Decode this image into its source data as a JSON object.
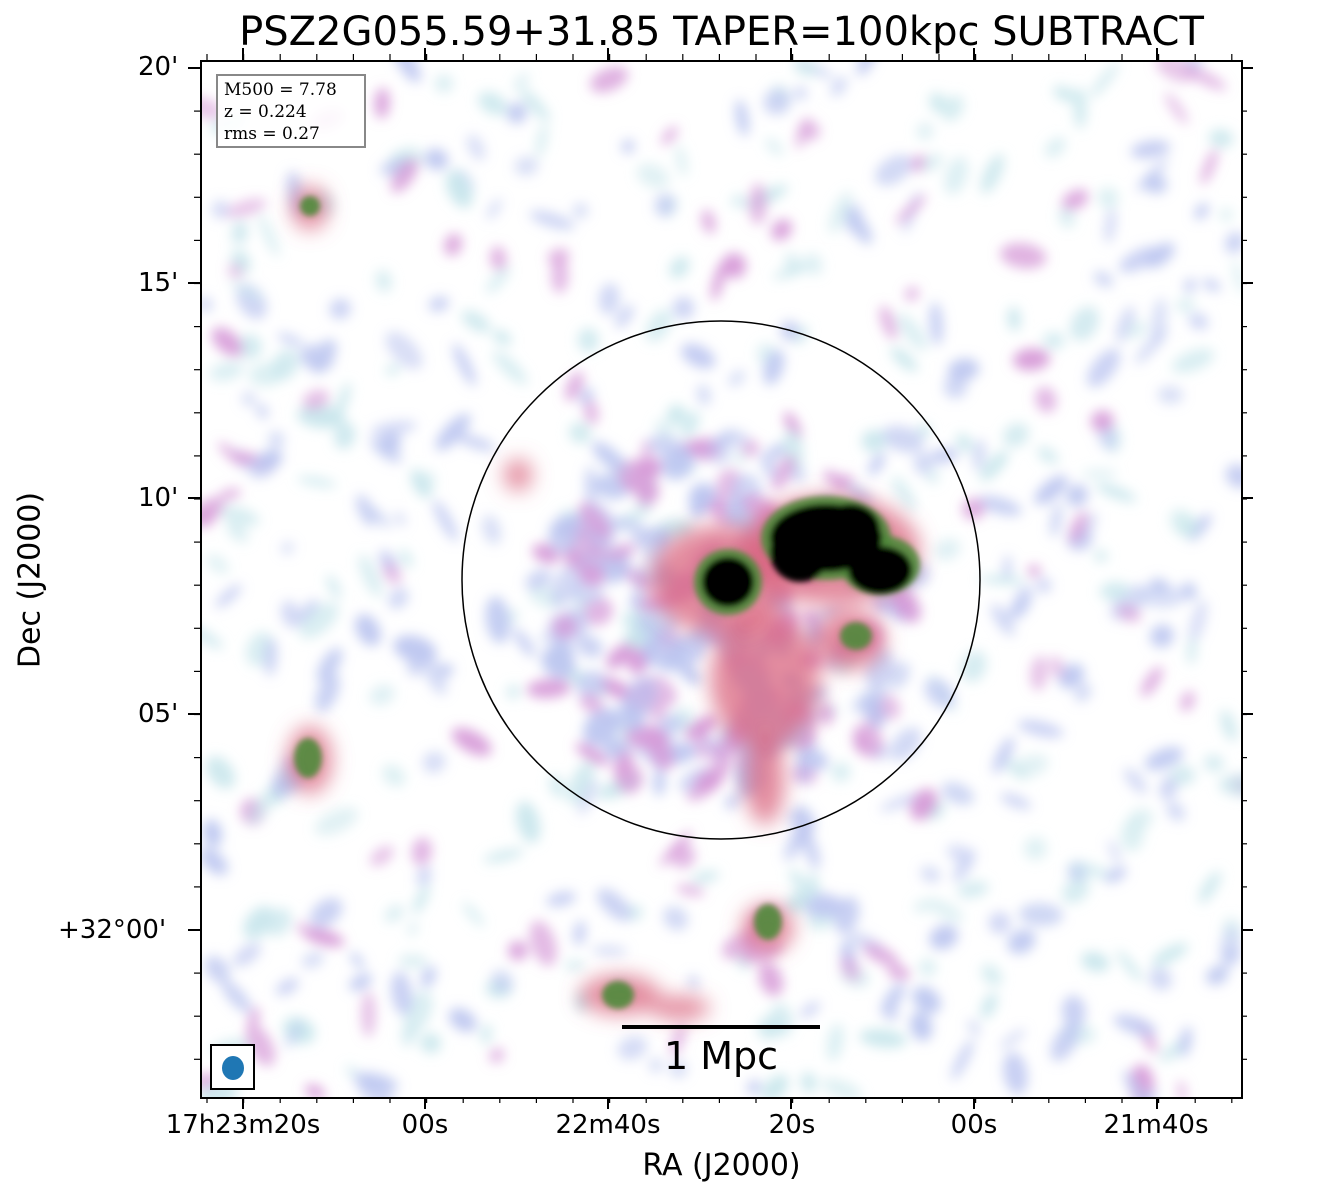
{
  "figure": {
    "title": "PSZ2G055.59+31.85 TAPER=100kpc SUBTRACT",
    "xlabel": "RA (J2000)",
    "ylabel": "Dec (J2000)",
    "x_ticks": [
      "17h23m20s",
      "00s",
      "22m40s",
      "20s",
      "00s",
      "21m40s"
    ],
    "y_ticks": [
      "20'",
      "15'",
      "10'",
      "05'",
      "+32°00'"
    ]
  },
  "info_box": {
    "line1": "M500 = 7.78",
    "line2": "z = 0.224",
    "line3": "rms = 0.27"
  },
  "scalebar": {
    "label": "1 Mpc"
  },
  "beam": {
    "color": "#1f77b4"
  },
  "colors": {
    "noise_light": "#c8e6ec",
    "noise_lavender": "#bcc6f0",
    "noise_pink": "#d69ad8",
    "emission_red": "#d9667f",
    "emission_green": "#4f8a3a",
    "saturated": "#000000"
  }
}
